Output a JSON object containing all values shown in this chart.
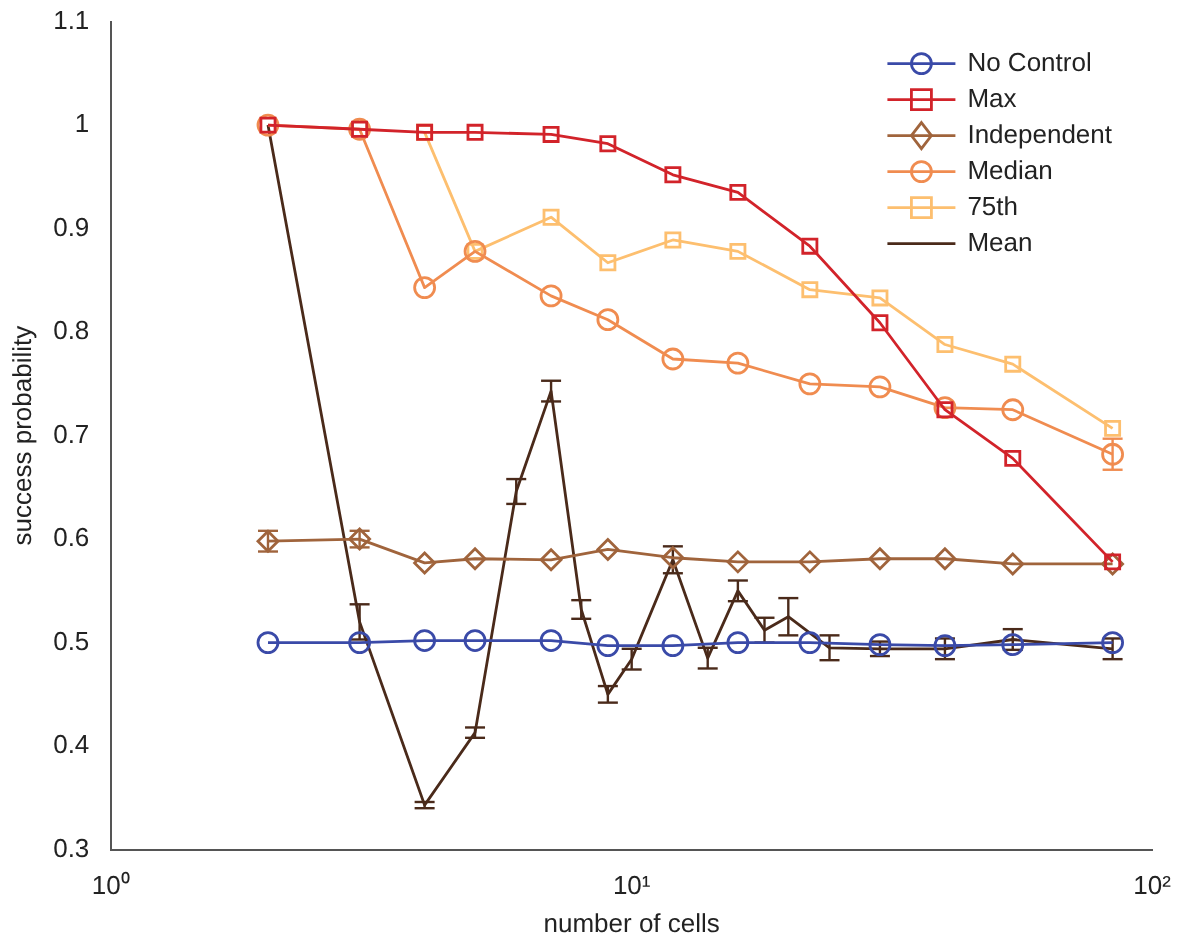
{
  "chart_data": {
    "type": "line",
    "xlabel": "number of cells",
    "ylabel": "success probability",
    "log": "x",
    "xlim": [
      1,
      100
    ],
    "xticks": [
      {
        "value": 1,
        "label": "10⁰"
      },
      {
        "value": 10,
        "label": "10¹"
      },
      {
        "value": 100,
        "label": "10²"
      }
    ],
    "ylim": [
      0.3,
      1.1
    ],
    "yticks": [
      0.3,
      0.4,
      0.5,
      0.6,
      0.7,
      0.8,
      0.9,
      1,
      1.1
    ],
    "grid": false,
    "legend": "top right",
    "line_style": "solid",
    "series": [
      {
        "name": "No Control",
        "color": "#3a4aa8",
        "marker": "circle",
        "x": [
          2,
          3,
          4,
          5,
          7,
          9,
          12,
          16,
          22,
          30,
          40,
          54,
          84
        ],
        "values": [
          0.5,
          0.5,
          0.502,
          0.502,
          0.502,
          0.497,
          0.497,
          0.5,
          0.5,
          0.498,
          0.497,
          0.498,
          0.5
        ]
      },
      {
        "name": "Max",
        "color": "#d2232a",
        "marker": "square",
        "x": [
          2,
          3,
          4,
          5,
          7,
          9,
          12,
          16,
          22,
          30,
          40,
          54,
          84
        ],
        "values": [
          1,
          0.996,
          0.993,
          0.993,
          0.991,
          0.982,
          0.952,
          0.935,
          0.883,
          0.809,
          0.725,
          0.678,
          0.578
        ]
      },
      {
        "name": "Independent",
        "color": "#a0643c",
        "marker": "diamond",
        "x": [
          2,
          3,
          4,
          5,
          7,
          9,
          12,
          16,
          22,
          30,
          40,
          54,
          84
        ],
        "values": [
          0.598,
          0.6,
          0.577,
          0.581,
          0.58,
          0.59,
          0.582,
          0.578,
          0.578,
          0.581,
          0.581,
          0.576,
          0.576
        ],
        "errors": [
          0.01,
          0.008,
          null,
          null,
          null,
          null,
          null,
          null,
          null,
          null,
          null,
          null,
          null
        ]
      },
      {
        "name": "Median",
        "color": "#f08c50",
        "marker": "circle",
        "x": [
          2,
          3,
          4,
          5,
          7,
          9,
          12,
          16,
          22,
          30,
          40,
          54,
          84
        ],
        "values": [
          1,
          0.996,
          0.843,
          0.878,
          0.835,
          0.812,
          0.774,
          0.77,
          0.75,
          0.747,
          0.727,
          0.725,
          0.682
        ],
        "errors": [
          null,
          null,
          null,
          null,
          null,
          null,
          null,
          null,
          null,
          null,
          null,
          null,
          0.015
        ]
      },
      {
        "name": "75th",
        "color": "#fdbf6f",
        "marker": "square",
        "x": [
          4,
          5,
          7,
          9,
          12,
          16,
          22,
          30,
          40,
          54,
          84
        ],
        "values": [
          0.993,
          0.878,
          0.911,
          0.867,
          0.889,
          0.878,
          0.841,
          0.833,
          0.788,
          0.769,
          0.707
        ]
      },
      {
        "name": "Mean",
        "color": "#4a2a1a",
        "marker": "none",
        "x": [
          2,
          3,
          4,
          5,
          6,
          7,
          8,
          9,
          10,
          12,
          14,
          16,
          18,
          20,
          24,
          30,
          40,
          54,
          84
        ],
        "values": [
          1,
          0.52,
          0.343,
          0.413,
          0.646,
          0.743,
          0.532,
          0.45,
          0.484,
          0.58,
          0.485,
          0.55,
          0.512,
          0.525,
          0.495,
          0.494,
          0.494,
          0.503,
          0.494
        ],
        "errors": [
          null,
          0.017,
          0.003,
          0.005,
          0.012,
          0.01,
          0.009,
          0.008,
          0.01,
          0.013,
          0.01,
          0.01,
          0.012,
          0.018,
          0.012,
          0.007,
          0.01,
          0.01,
          0.01
        ]
      }
    ]
  }
}
